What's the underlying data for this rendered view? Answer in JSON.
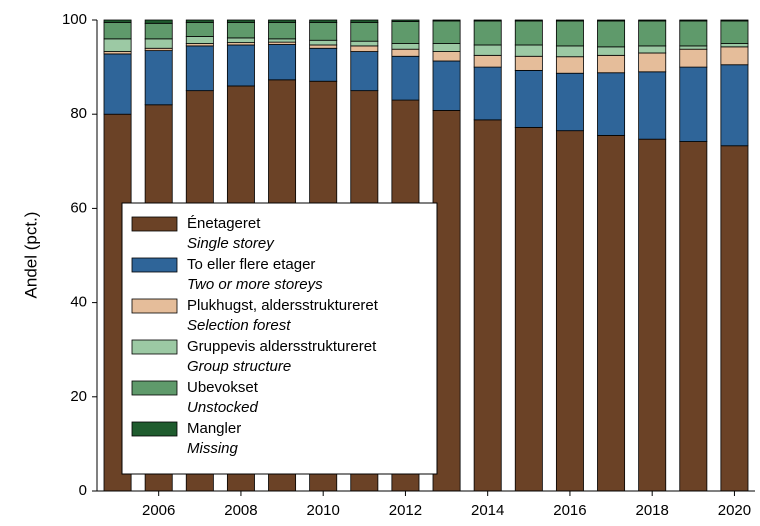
{
  "chart_data": {
    "type": "stacked_bar",
    "y_label": "Andel (pct.)",
    "categories": [
      null,
      "2006",
      null,
      "2008",
      null,
      "2010",
      null,
      "2012",
      null,
      "2014",
      null,
      "2016",
      null,
      "2018",
      null,
      "2020"
    ],
    "ylim": [
      0,
      100
    ],
    "yticks": [
      0,
      20,
      40,
      60,
      80,
      100
    ],
    "series": [
      {
        "name": "Énetageret",
        "name_en": "Single storey",
        "color": "#6b4226",
        "values": [
          80,
          82,
          85,
          86,
          87.3,
          87,
          85,
          83,
          80.8,
          78.8,
          77.2,
          76.5,
          75.5,
          74.7,
          74.2,
          73.3
        ]
      },
      {
        "name": "To eller flere etager",
        "name_en": "Two or more storeys",
        "color": "#2f6599",
        "values": [
          12.8,
          11.5,
          9.5,
          8.7,
          7.5,
          7,
          8.3,
          9.3,
          10.5,
          11.2,
          12.1,
          12.2,
          13.3,
          14.3,
          15.8,
          17.2
        ]
      },
      {
        "name": "Plukhugst, aldersstruktureret",
        "name_en": "Selection forest",
        "color": "#e5bd9a",
        "values": [
          0.5,
          0.5,
          0.5,
          0.5,
          0.5,
          0.7,
          1.2,
          1.5,
          2,
          2.5,
          3,
          3.5,
          3.7,
          4,
          3.8,
          3.8
        ]
      },
      {
        "name": "Gruppevis aldersstruktureret",
        "name_en": "Group structure",
        "color": "#9cc9a4",
        "values": [
          2.7,
          2,
          1.5,
          1,
          0.7,
          1,
          1,
          1.2,
          1.7,
          2.2,
          2.4,
          2.3,
          1.8,
          1.5,
          0.7,
          0.7
        ]
      },
      {
        "name": "Ubevokset",
        "name_en": "Unstocked",
        "color": "#5f9a6b",
        "values": [
          3.5,
          3.3,
          3,
          3.3,
          3.5,
          3.8,
          4,
          4.7,
          4.8,
          5.1,
          5.1,
          5.3,
          5.5,
          5.3,
          5.3,
          4.8
        ]
      },
      {
        "name": "Mangler",
        "name_en": "Missing",
        "color": "#1f5c2e",
        "values": [
          0.5,
          0.7,
          0.5,
          0.5,
          0.5,
          0.5,
          0.5,
          0.3,
          0.2,
          0.2,
          0.2,
          0.2,
          0.2,
          0.2,
          0.2,
          0.2
        ]
      }
    ]
  }
}
